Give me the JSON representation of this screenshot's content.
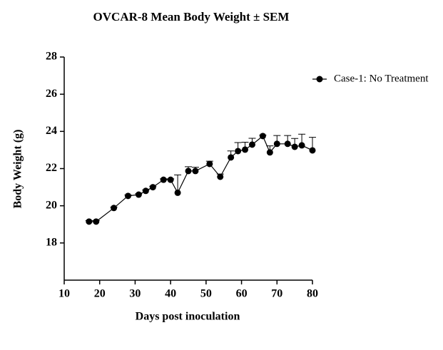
{
  "chart_data": {
    "type": "line",
    "title": "OVCAR-8 Mean Body Weight ± SEM",
    "x_label": "Days post inoculation",
    "y_label": "Body Weight (g)",
    "xlim": [
      10,
      80
    ],
    "xticks": [
      10,
      20,
      30,
      40,
      50,
      60,
      70,
      80
    ],
    "ylim": [
      16,
      28
    ],
    "yticks": [
      18,
      20,
      22,
      24,
      26,
      28
    ],
    "legend_position": "upper right",
    "series": [
      {
        "name": "Case-1: No Treatment",
        "color": "#000000",
        "x": [
          17,
          19,
          24,
          28,
          31,
          33,
          35,
          38,
          40,
          42,
          45,
          47,
          51,
          54,
          57,
          59,
          61,
          63,
          66,
          68,
          70,
          73,
          75,
          77,
          80
        ],
        "values": [
          19.15,
          19.15,
          19.88,
          20.53,
          20.6,
          20.8,
          21.0,
          21.4,
          21.4,
          20.7,
          21.87,
          21.87,
          22.25,
          21.56,
          22.6,
          22.94,
          23.02,
          23.29,
          23.75,
          22.87,
          23.33,
          23.33,
          23.17,
          23.25,
          22.98
        ],
        "errors": [
          0.05,
          0.05,
          0.05,
          0.05,
          0.05,
          0.05,
          0.05,
          0.05,
          0.05,
          0.96,
          0.23,
          0.2,
          0.15,
          0.15,
          0.35,
          0.46,
          0.4,
          0.34,
          0.05,
          0.35,
          0.45,
          0.45,
          0.45,
          0.6,
          0.7
        ]
      }
    ]
  }
}
